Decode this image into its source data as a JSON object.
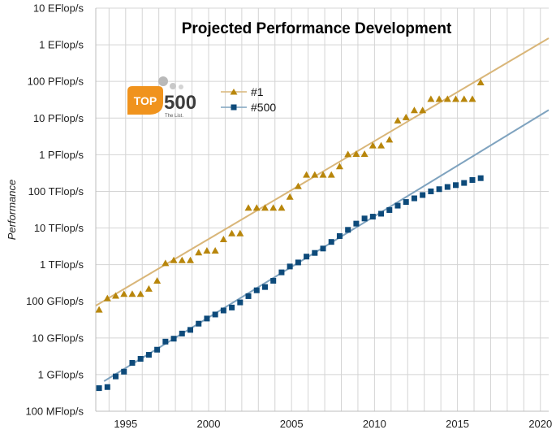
{
  "colors": {
    "top1": "#b8860b",
    "top1_trend": "#d9b679",
    "top500": "#0d4a7a",
    "top500_trend": "#7fa3bf",
    "grid": "#d4d4d4",
    "logo_orange": "#f0931d"
  },
  "logo": {
    "badge": "TOP",
    "number": "500",
    "tagline": "The List."
  },
  "chart_data": {
    "type": "scatter",
    "title": "Projected Performance Development",
    "ylabel": "Performance",
    "xlabel": "",
    "xlim": [
      1993.2,
      2020.5
    ],
    "ylim_log10": [
      8,
      19
    ],
    "log_scale_y": true,
    "grid": true,
    "legend_position": "upper-left",
    "x_ticks": [
      1995,
      2000,
      2005,
      2010,
      2015,
      2020
    ],
    "x_tick_labels": [
      "1995",
      "2000",
      "2005",
      "2010",
      "2015",
      "2020"
    ],
    "y_ticks_log10": [
      8,
      9,
      10,
      11,
      12,
      13,
      14,
      15,
      16,
      17,
      18,
      19
    ],
    "y_tick_labels": [
      "100 MFlop/s",
      "1 GFlop/s",
      "10 GFlop/s",
      "100 GFlop/s",
      "1 TFlop/s",
      "10 TFlop/s",
      "100 TFlop/s",
      "1 PFlop/s",
      "10 PFlop/s",
      "100 PFlop/s",
      "1 EFlop/s",
      "10 EFlop/s"
    ],
    "series": [
      {
        "name": "#1",
        "marker": "triangle",
        "x": [
          1993.4,
          1993.9,
          1994.4,
          1994.9,
          1995.4,
          1995.9,
          1996.4,
          1996.9,
          1997.4,
          1997.9,
          1998.4,
          1998.9,
          1999.4,
          1999.9,
          2000.4,
          2000.9,
          2001.4,
          2001.9,
          2002.4,
          2002.9,
          2003.4,
          2003.9,
          2004.4,
          2004.9,
          2005.4,
          2005.9,
          2006.4,
          2006.9,
          2007.4,
          2007.9,
          2008.4,
          2008.9,
          2009.4,
          2009.9,
          2010.4,
          2010.9,
          2011.4,
          2011.9,
          2012.4,
          2012.9,
          2013.4,
          2013.9,
          2014.4,
          2014.9,
          2015.4,
          2015.9,
          2016.4
        ],
        "log10": [
          10.77,
          11.08,
          11.15,
          11.2,
          11.2,
          11.2,
          11.34,
          11.56,
          12.04,
          12.12,
          12.12,
          12.12,
          12.33,
          12.38,
          12.38,
          12.69,
          12.85,
          12.85,
          13.55,
          13.55,
          13.55,
          13.55,
          13.55,
          13.85,
          14.14,
          14.45,
          14.45,
          14.45,
          14.45,
          14.68,
          15.01,
          15.02,
          15.02,
          15.25,
          15.25,
          15.41,
          15.93,
          16.02,
          16.21,
          16.21,
          16.52,
          16.52,
          16.52,
          16.52,
          16.52,
          16.52,
          16.97
        ]
      },
      {
        "name": "#500",
        "marker": "square",
        "x": [
          1993.4,
          1993.9,
          1994.4,
          1994.9,
          1995.4,
          1995.9,
          1996.4,
          1996.9,
          1997.4,
          1997.9,
          1998.4,
          1998.9,
          1999.4,
          1999.9,
          2000.4,
          2000.9,
          2001.4,
          2001.9,
          2002.4,
          2002.9,
          2003.4,
          2003.9,
          2004.4,
          2004.9,
          2005.4,
          2005.9,
          2006.4,
          2006.9,
          2007.4,
          2007.9,
          2008.4,
          2008.9,
          2009.4,
          2009.9,
          2010.4,
          2010.9,
          2011.4,
          2011.9,
          2012.4,
          2012.9,
          2013.4,
          2013.9,
          2014.4,
          2014.9,
          2015.4,
          2015.9,
          2016.4
        ],
        "log10": [
          8.63,
          8.66,
          8.95,
          9.08,
          9.32,
          9.43,
          9.54,
          9.68,
          9.9,
          9.98,
          10.12,
          10.22,
          10.39,
          10.53,
          10.64,
          10.75,
          10.83,
          10.97,
          11.14,
          11.3,
          11.39,
          11.56,
          11.79,
          11.95,
          12.06,
          12.22,
          12.32,
          12.44,
          12.62,
          12.78,
          12.95,
          13.12,
          13.26,
          13.31,
          13.39,
          13.49,
          13.61,
          13.71,
          13.81,
          13.9,
          14.0,
          14.06,
          14.12,
          14.17,
          14.23,
          14.31,
          14.36
        ]
      }
    ],
    "trendlines": [
      {
        "series": "#1",
        "x": [
          1993.2,
          2020.5
        ],
        "log10": [
          10.88,
          18.18
        ]
      },
      {
        "series": "#500",
        "x": [
          1993.7,
          2020.5
        ],
        "log10": [
          8.82,
          16.22
        ]
      }
    ]
  }
}
